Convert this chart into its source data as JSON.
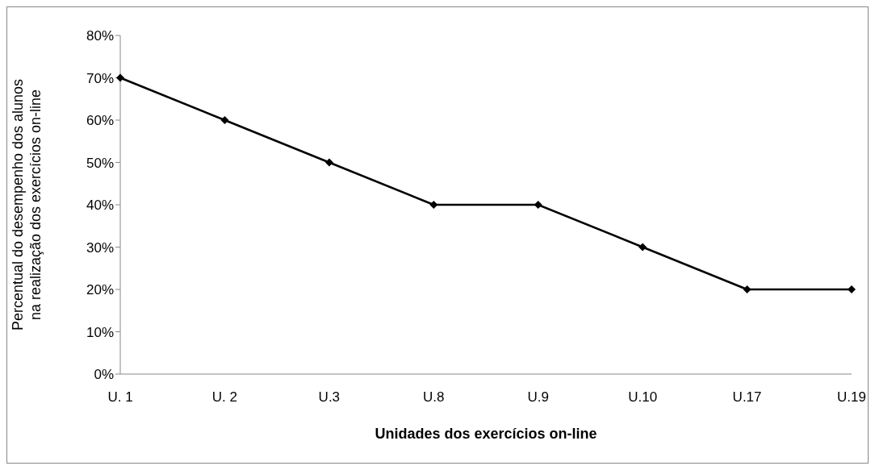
{
  "chart_data": {
    "type": "line",
    "xlabel": "Unidades dos exercícios on-line",
    "ylabel": "Percentual do desempenho dos alunos\nna realização dos exercícios on-line",
    "categories": [
      "U. 1",
      "U. 2",
      "U.3",
      "U.8",
      "U.9",
      "U.10",
      "U.17",
      "U.19"
    ],
    "series": [
      {
        "color": "#000000",
        "values": [
          70,
          60,
          50,
          40,
          40,
          30,
          20,
          20
        ]
      }
    ],
    "ylim": [
      0,
      80
    ],
    "yticks": [
      {
        "value": 0,
        "label": "0%"
      },
      {
        "value": 10,
        "label": "10%"
      },
      {
        "value": 20,
        "label": "20%"
      },
      {
        "value": 30,
        "label": "30%"
      },
      {
        "value": 40,
        "label": "40%"
      },
      {
        "value": 50,
        "label": "50%"
      },
      {
        "value": 60,
        "label": "60%"
      },
      {
        "value": 70,
        "label": "70%"
      },
      {
        "value": 80,
        "label": "80%"
      }
    ],
    "grid": false,
    "legend": false,
    "marker": "diamond",
    "line_style": "solid"
  }
}
